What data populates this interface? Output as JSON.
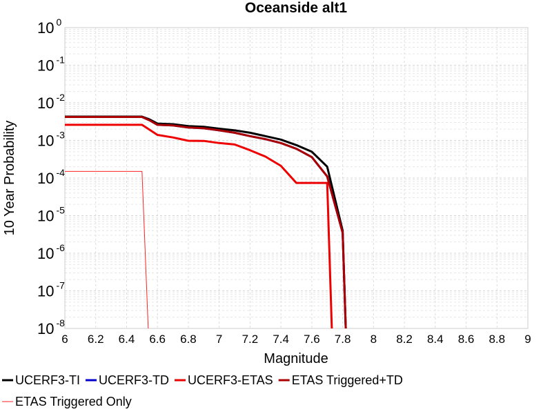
{
  "chart_data": {
    "type": "line",
    "title": "Oceanside alt1",
    "xlabel": "Magnitude",
    "ylabel": "10 Year Probability",
    "xlim": [
      6,
      9
    ],
    "ylim": [
      1e-08,
      1
    ],
    "yscale": "log",
    "grid": true,
    "legend_position": "bottom",
    "x_ticks": [
      "6",
      "6.2",
      "6.4",
      "6.6",
      "6.8",
      "7",
      "7.2",
      "7.4",
      "7.6",
      "7.8",
      "8",
      "8.2",
      "8.4",
      "8.6",
      "8.8",
      "9"
    ],
    "y_ticks": [
      {
        "base": "10",
        "exp": "0"
      },
      {
        "base": "10",
        "exp": "-1"
      },
      {
        "base": "10",
        "exp": "-2"
      },
      {
        "base": "10",
        "exp": "-3"
      },
      {
        "base": "10",
        "exp": "-4"
      },
      {
        "base": "10",
        "exp": "-5"
      },
      {
        "base": "10",
        "exp": "-6"
      },
      {
        "base": "10",
        "exp": "-7"
      },
      {
        "base": "10",
        "exp": "-8"
      }
    ],
    "series": [
      {
        "name": "UCERF3-TI",
        "color": "#000000",
        "width": 3,
        "points": [
          [
            6.0,
            0.0043
          ],
          [
            6.5,
            0.0043
          ],
          [
            6.55,
            0.0036
          ],
          [
            6.6,
            0.0028
          ],
          [
            6.7,
            0.0027
          ],
          [
            6.8,
            0.0024
          ],
          [
            6.9,
            0.0023
          ],
          [
            7.0,
            0.00205
          ],
          [
            7.1,
            0.00185
          ],
          [
            7.2,
            0.0016
          ],
          [
            7.3,
            0.0013
          ],
          [
            7.4,
            0.00105
          ],
          [
            7.5,
            0.00075
          ],
          [
            7.6,
            0.0005
          ],
          [
            7.7,
            0.0002
          ],
          [
            7.8,
            4e-06
          ],
          [
            7.82,
            1e-08
          ]
        ]
      },
      {
        "name": "UCERF3-TD",
        "color": "#0000cc",
        "width": 3,
        "points": [
          [
            6.0,
            0.0042
          ],
          [
            6.5,
            0.0042
          ],
          [
            6.55,
            0.0034
          ],
          [
            6.6,
            0.0026
          ],
          [
            6.7,
            0.0025
          ],
          [
            6.8,
            0.0022
          ],
          [
            6.9,
            0.0021
          ],
          [
            7.0,
            0.00185
          ],
          [
            7.1,
            0.0016
          ],
          [
            7.2,
            0.0013
          ],
          [
            7.3,
            0.00108
          ],
          [
            7.4,
            0.00085
          ],
          [
            7.5,
            0.0006
          ],
          [
            7.6,
            0.00036
          ],
          [
            7.7,
            0.00011
          ],
          [
            7.8,
            3.5e-06
          ],
          [
            7.82,
            1e-08
          ]
        ]
      },
      {
        "name": "UCERF3-ETAS",
        "color": "#ee0000",
        "width": 3,
        "points": [
          [
            6.0,
            0.0026
          ],
          [
            6.5,
            0.0026
          ],
          [
            6.6,
            0.0014
          ],
          [
            6.7,
            0.0012
          ],
          [
            6.8,
            0.00098
          ],
          [
            6.9,
            0.00097
          ],
          [
            7.0,
            0.00085
          ],
          [
            7.1,
            0.00078
          ],
          [
            7.2,
            0.00055
          ],
          [
            7.3,
            0.00037
          ],
          [
            7.4,
            0.00021
          ],
          [
            7.5,
            7.4e-05
          ],
          [
            7.6,
            7.4e-05
          ],
          [
            7.7,
            7.4e-05
          ],
          [
            7.73,
            1e-08
          ]
        ]
      },
      {
        "name": "ETAS Triggered+TD",
        "color": "#aa0000",
        "width": 3,
        "points": [
          [
            6.0,
            0.0042
          ],
          [
            6.5,
            0.0042
          ],
          [
            6.55,
            0.0034
          ],
          [
            6.6,
            0.0026
          ],
          [
            6.7,
            0.0025
          ],
          [
            6.8,
            0.0022
          ],
          [
            6.9,
            0.0021
          ],
          [
            7.0,
            0.00185
          ],
          [
            7.1,
            0.0016
          ],
          [
            7.2,
            0.0013
          ],
          [
            7.3,
            0.00108
          ],
          [
            7.4,
            0.00085
          ],
          [
            7.5,
            0.0006
          ],
          [
            7.6,
            0.00036
          ],
          [
            7.7,
            0.00011
          ],
          [
            7.8,
            3.5e-06
          ],
          [
            7.82,
            1e-08
          ]
        ]
      },
      {
        "name": "ETAS Triggered Only",
        "color": "#ff2020",
        "width": 1,
        "points": [
          [
            6.0,
            0.00015
          ],
          [
            6.5,
            0.00015
          ],
          [
            6.54,
            1e-08
          ]
        ]
      }
    ]
  }
}
